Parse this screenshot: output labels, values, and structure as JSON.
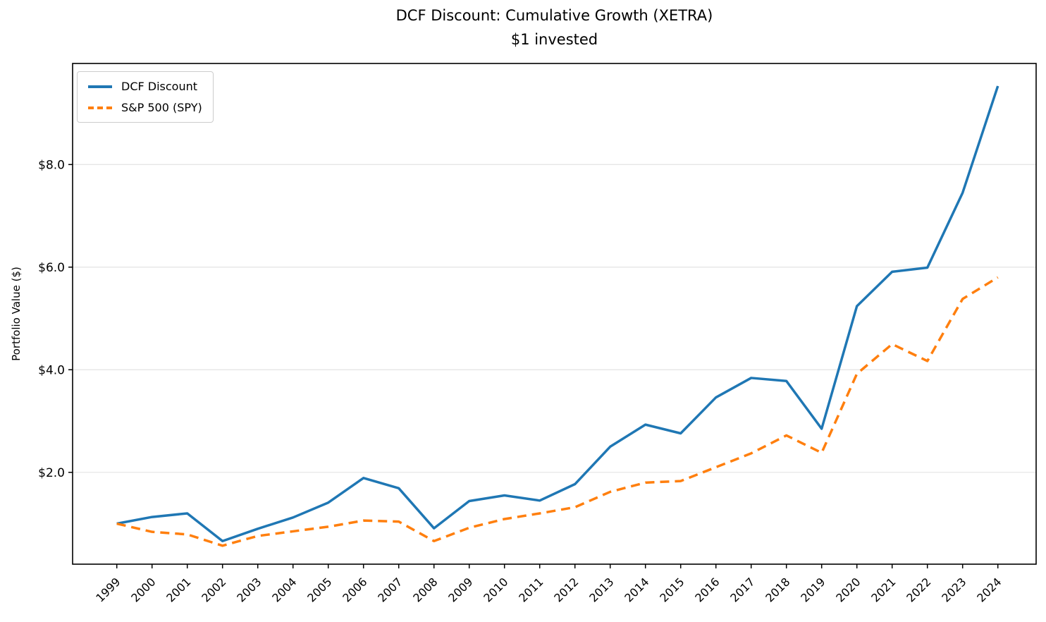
{
  "title": "DCF Discount: Cumulative Growth (XETRA)",
  "subtitle": "$1 invested",
  "chart_data": {
    "type": "line",
    "title": "DCF Discount: Cumulative Growth (XETRA)",
    "subtitle": "$1 invested",
    "xlabel": "",
    "ylabel": "Portfolio Value ($)",
    "categories": [
      "1999",
      "2000",
      "2001",
      "2002",
      "2003",
      "2004",
      "2005",
      "2006",
      "2007",
      "2008",
      "2009",
      "2010",
      "2011",
      "2012",
      "2013",
      "2014",
      "2015",
      "2016",
      "2017",
      "2018",
      "2019",
      "2020",
      "2021",
      "2022",
      "2023",
      "2024"
    ],
    "series": [
      {
        "name": "DCF Discount",
        "color": "#1f77b4",
        "style": "solid",
        "values": [
          1.0,
          1.13,
          1.2,
          0.66,
          0.9,
          1.12,
          1.41,
          1.89,
          1.69,
          0.91,
          1.44,
          1.55,
          1.45,
          1.77,
          2.5,
          2.93,
          2.76,
          3.46,
          3.84,
          3.78,
          2.85,
          5.24,
          5.91,
          5.99,
          7.45,
          9.53
        ]
      },
      {
        "name": "S&P 500 (SPY)",
        "color": "#ff7f0e",
        "style": "dashed",
        "values": [
          1.0,
          0.84,
          0.79,
          0.57,
          0.76,
          0.85,
          0.94,
          1.06,
          1.04,
          0.66,
          0.92,
          1.09,
          1.2,
          1.32,
          1.62,
          1.8,
          1.83,
          2.1,
          2.37,
          2.72,
          2.38,
          3.92,
          4.5,
          4.17,
          5.38,
          5.8
        ]
      }
    ],
    "ylim": [
      0.21,
      9.97
    ],
    "yticks": [
      2.0,
      4.0,
      6.0,
      8.0
    ],
    "ytick_labels": [
      "$2.0",
      "$4.0",
      "$6.0",
      "$8.0"
    ],
    "grid": "horizontal",
    "legend_position": "upper-left",
    "frame_color": "#000000",
    "gridline_color": "#e6e6e6"
  }
}
